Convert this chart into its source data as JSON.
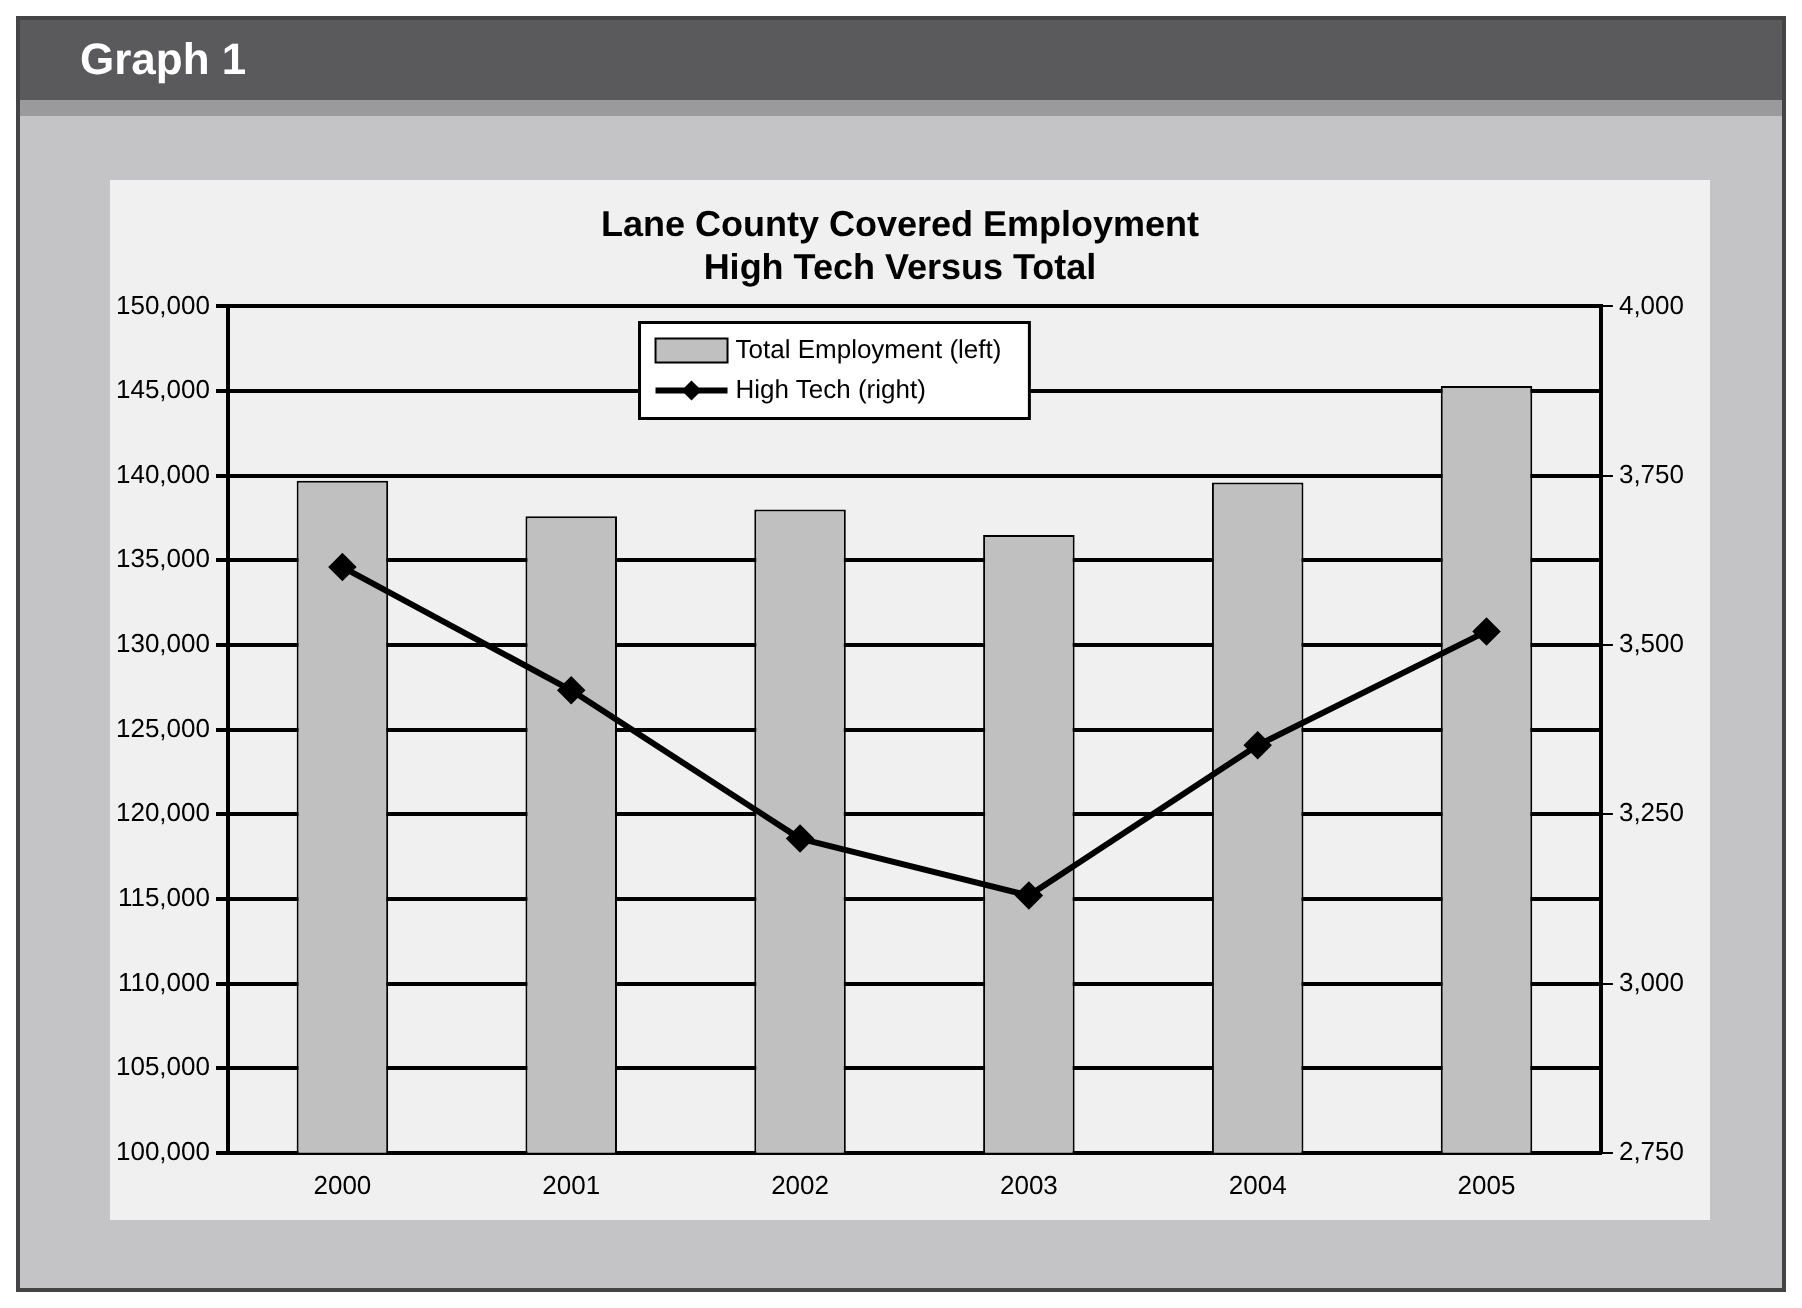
{
  "chart_data": {
    "type": "bar",
    "title": "Lane County Covered Employment\nHigh Tech Versus Total",
    "subtitle": "Graph 1",
    "categories": [
      "2000",
      "2001",
      "2002",
      "2003",
      "2004",
      "2005"
    ],
    "series": [
      {
        "name": "Total Employment (left)",
        "color": "#c0c0c0",
        "values": [
          139700,
          137600,
          138000,
          136500,
          139600,
          145300
        ]
      },
      {
        "name": "High Tech (right)",
        "type": "line",
        "axis": "y2",
        "color": "#000000",
        "values": [
          3615,
          3433,
          3214,
          3130,
          3352,
          3520
        ]
      }
    ],
    "ylim": [
      100000,
      150000
    ],
    "yticks": [
      {
        "value": 100000,
        "label": "100,000"
      },
      {
        "value": 105000,
        "label": "105,000"
      },
      {
        "value": 110000,
        "label": "110,000"
      },
      {
        "value": 115000,
        "label": "115,000"
      },
      {
        "value": 120000,
        "label": "120,000"
      },
      {
        "value": 125000,
        "label": "125,000"
      },
      {
        "value": 130000,
        "label": "130,000"
      },
      {
        "value": 135000,
        "label": "135,000"
      },
      {
        "value": 140000,
        "label": "140,000"
      },
      {
        "value": 145000,
        "label": "145,000"
      },
      {
        "value": 150000,
        "label": "150,000"
      }
    ],
    "y2lim": [
      2750,
      4000
    ],
    "y2ticks": [
      {
        "value": 2750,
        "label": "2,750"
      },
      {
        "value": 3000,
        "label": "3,000"
      },
      {
        "value": 3250,
        "label": "3,250"
      },
      {
        "value": 3500,
        "label": "3,500"
      },
      {
        "value": 3750,
        "label": "3,750"
      },
      {
        "value": 4000,
        "label": "4,000"
      }
    ],
    "grid": "y",
    "legend": "top",
    "marker": "diamond",
    "line_style": "solid"
  }
}
